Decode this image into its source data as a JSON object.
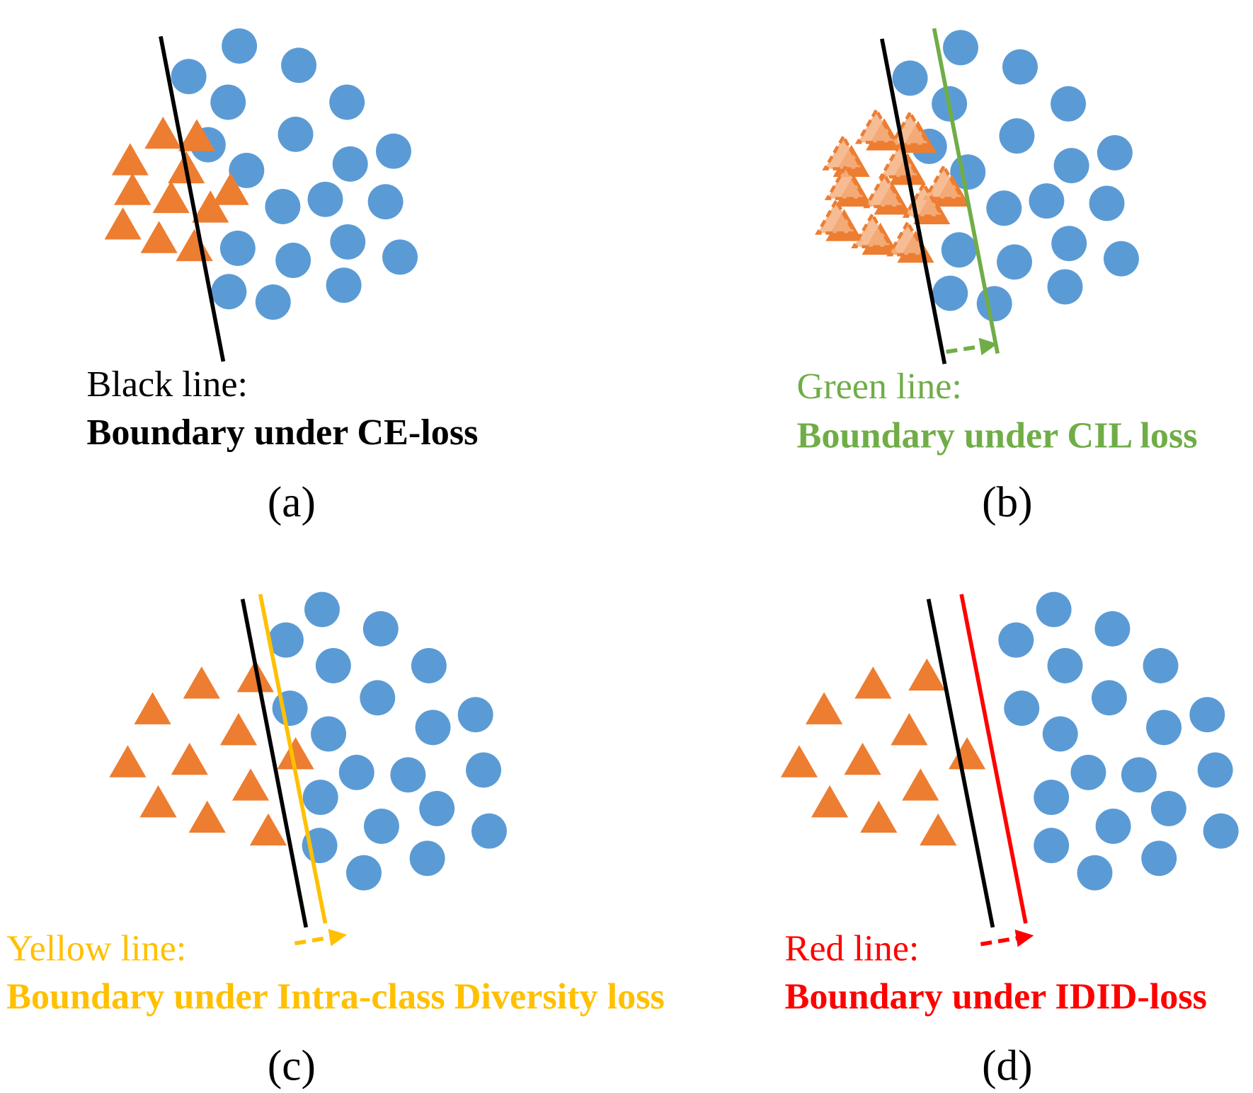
{
  "colors": {
    "circle": "#5B9BD5",
    "triangle": "#ED7D31",
    "triangle_ghost": "#F4B183",
    "black": "#000000",
    "green": "#70AD47",
    "yellow": "#FFC000",
    "red": "#FF0000"
  },
  "panels": [
    {
      "id": "a",
      "caption_line1": "Black line:",
      "caption_line2": "Boundary under CE-loss",
      "label": "(a)",
      "line_color": "black"
    },
    {
      "id": "b",
      "caption_line1": "Green line:",
      "caption_line2": "Boundary under CIL loss",
      "label": "(b)",
      "line_color": "green"
    },
    {
      "id": "c",
      "caption_line1": "Yellow line:",
      "caption_line2": "Boundary under Intra-class Diversity loss",
      "label": "(c)",
      "line_color": "yellow"
    },
    {
      "id": "d",
      "caption_line1": "Red line:",
      "caption_line2": "Boundary under IDID-loss",
      "label": "(d)",
      "line_color": "red"
    }
  ]
}
